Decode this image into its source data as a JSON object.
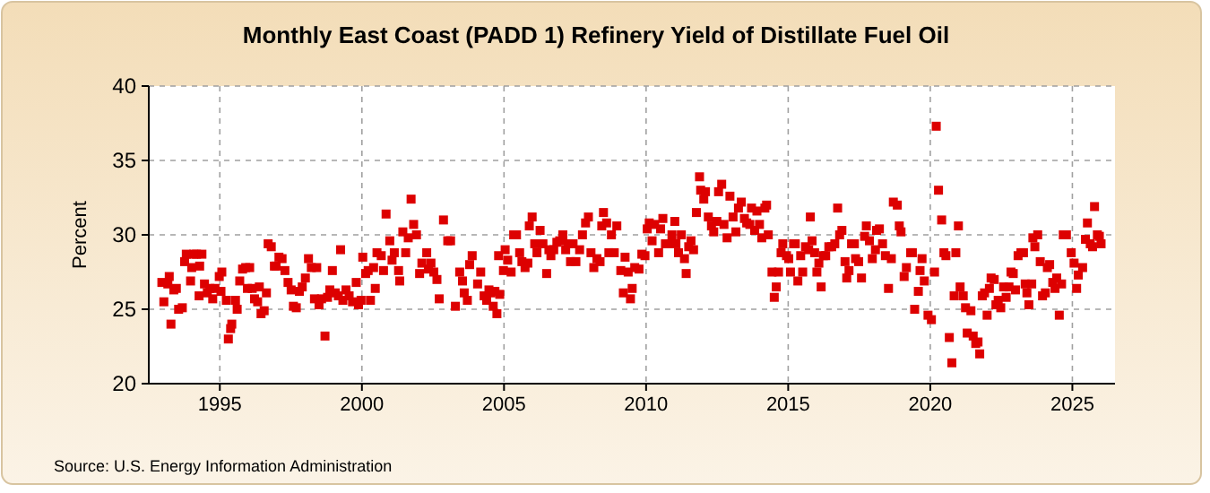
{
  "chart_data": {
    "type": "scatter",
    "title": "Monthly East Coast (PADD 1) Refinery Yield of Distillate Fuel Oil",
    "ylabel": "Percent",
    "annotations": [
      "Source: U.S. Energy Information Administration"
    ],
    "xlim": [
      1992.5,
      2026.5
    ],
    "xticks": [
      1995,
      2000,
      2005,
      2010,
      2015,
      2020,
      2025
    ],
    "ylim": [
      20,
      40
    ],
    "yticks": [
      20,
      25,
      30,
      35,
      40
    ],
    "grid": true,
    "marker": "square",
    "series": [
      {
        "color": "#dd0000",
        "x": [
          1992.96,
          1993.03,
          1993.17,
          1993.22,
          1993.28,
          1993.38,
          1993.47,
          1993.55,
          1993.68,
          1993.76,
          1993.82,
          1993.97,
          1994.01,
          1994.08,
          1994.18,
          1994.27,
          1994.29,
          1994.37,
          1994.46,
          1994.56,
          1994.65,
          1994.75,
          1994.83,
          1994.98,
          1995.04,
          1995.07,
          1995.23,
          1995.3,
          1995.38,
          1995.42,
          1995.55,
          1995.61,
          1995.7,
          1995.8,
          1995.91,
          1995.97,
          1996.05,
          1996.14,
          1996.22,
          1996.33,
          1996.39,
          1996.45,
          1996.56,
          1996.64,
          1996.7,
          1996.81,
          1996.92,
          1996.98,
          1997.08,
          1997.19,
          1997.29,
          1997.4,
          1997.51,
          1997.59,
          1997.69,
          1997.8,
          1997.9,
          1998.01,
          1998.12,
          1998.22,
          1998.33,
          1998.41,
          1998.49,
          1998.58,
          1998.7,
          1998.79,
          1998.87,
          1998.96,
          1999.06,
          1999.17,
          1999.25,
          1999.33,
          1999.44,
          1999.55,
          1999.67,
          1999.8,
          1999.88,
          1999.97,
          2000.03,
          2000.13,
          2000.22,
          2000.3,
          2000.41,
          2000.47,
          2000.53,
          2000.68,
          2000.76,
          2000.85,
          2000.98,
          2001.06,
          2001.14,
          2001.29,
          2001.33,
          2001.44,
          2001.54,
          2001.63,
          2001.73,
          2001.82,
          2001.92,
          2002.03,
          2002.11,
          2002.28,
          2002.34,
          2002.43,
          2002.53,
          2002.64,
          2002.72,
          2002.87,
          2003.02,
          2003.12,
          2003.29,
          2003.44,
          2003.54,
          2003.6,
          2003.71,
          2003.79,
          2003.88,
          2004.07,
          2004.18,
          2004.3,
          2004.39,
          2004.47,
          2004.54,
          2004.62,
          2004.68,
          2004.75,
          2004.81,
          2004.85,
          2004.98,
          2005.04,
          2005.13,
          2005.25,
          2005.34,
          2005.44,
          2005.55,
          2005.63,
          2005.74,
          2005.84,
          2005.89,
          2005.99,
          2006.08,
          2006.16,
          2006.27,
          2006.37,
          2006.5,
          2006.58,
          2006.65,
          2006.75,
          2006.86,
          2006.96,
          2007.07,
          2007.17,
          2007.26,
          2007.34,
          2007.43,
          2007.53,
          2007.66,
          2007.76,
          2007.87,
          2007.97,
          2008.06,
          2008.16,
          2008.27,
          2008.38,
          2008.44,
          2008.5,
          2008.61,
          2008.69,
          2008.78,
          2008.88,
          2008.97,
          2009.11,
          2009.2,
          2009.26,
          2009.37,
          2009.45,
          2009.51,
          2009.6,
          2009.75,
          2009.85,
          2009.96,
          2010.04,
          2010.11,
          2010.21,
          2010.3,
          2010.44,
          2010.51,
          2010.59,
          2010.68,
          2010.8,
          2010.91,
          2011.01,
          2011.05,
          2011.14,
          2011.24,
          2011.35,
          2011.41,
          2011.5,
          2011.58,
          2011.67,
          2011.77,
          2011.88,
          2011.92,
          2012.03,
          2012.09,
          2012.19,
          2012.3,
          2012.38,
          2012.49,
          2012.55,
          2012.66,
          2012.74,
          2012.85,
          2012.95,
          2013.06,
          2013.16,
          2013.25,
          2013.35,
          2013.46,
          2013.54,
          2013.65,
          2013.71,
          2013.82,
          2013.9,
          2013.99,
          2014.07,
          2014.18,
          2014.24,
          2014.3,
          2014.43,
          2014.51,
          2014.58,
          2014.66,
          2014.75,
          2014.81,
          2014.94,
          2015.02,
          2015.08,
          2015.19,
          2015.25,
          2015.34,
          2015.44,
          2015.51,
          2015.61,
          2015.72,
          2015.78,
          2015.84,
          2015.93,
          2016.01,
          2016.08,
          2016.16,
          2016.24,
          2016.32,
          2016.43,
          2016.53,
          2016.64,
          2016.74,
          2016.81,
          2016.89,
          2017.0,
          2017.06,
          2017.14,
          2017.23,
          2017.33,
          2017.37,
          2017.48,
          2017.58,
          2017.69,
          2017.75,
          2017.86,
          2017.96,
          2018.07,
          2018.11,
          2018.21,
          2018.32,
          2018.42,
          2018.53,
          2018.63,
          2018.7,
          2018.84,
          2018.91,
          2018.97,
          2019.08,
          2019.16,
          2019.31,
          2019.37,
          2019.45,
          2019.58,
          2019.64,
          2019.71,
          2019.79,
          2019.92,
          2020.04,
          2020.15,
          2020.21,
          2020.29,
          2020.4,
          2020.48,
          2020.55,
          2020.67,
          2020.76,
          2020.84,
          2020.9,
          2020.99,
          2021.05,
          2021.16,
          2021.24,
          2021.3,
          2021.43,
          2021.51,
          2021.6,
          2021.68,
          2021.74,
          2021.83,
          2021.91,
          2022.0,
          2022.08,
          2022.14,
          2022.25,
          2022.31,
          2022.39,
          2022.48,
          2022.58,
          2022.67,
          2022.77,
          2022.84,
          2022.92,
          2023.0,
          2023.09,
          2023.19,
          2023.28,
          2023.34,
          2023.4,
          2023.47,
          2023.57,
          2023.61,
          2023.68,
          2023.78,
          2023.87,
          2023.95,
          2024.05,
          2024.12,
          2024.2,
          2024.31,
          2024.39,
          2024.45,
          2024.54,
          2024.62,
          2024.68,
          2024.79,
          2024.96,
          2025.06,
          2025.15,
          2025.21,
          2025.36,
          2025.46,
          2025.53,
          2025.63,
          2025.71,
          2025.78,
          2025.88,
          2025.95,
          2026.01
        ],
        "values": [
          26.8,
          25.5,
          26.7,
          27.2,
          24.0,
          26.3,
          26.4,
          25.0,
          25.1,
          28.2,
          28.7,
          26.9,
          27.8,
          28.7,
          28.7,
          25.9,
          27.9,
          28.7,
          26.7,
          26.1,
          26.4,
          25.7,
          26.4,
          27.2,
          26.2,
          27.5,
          25.6,
          23.0,
          23.7,
          24.0,
          25.6,
          25.0,
          26.9,
          27.7,
          27.8,
          26.4,
          27.8,
          26.4,
          25.7,
          25.5,
          26.5,
          24.7,
          24.9,
          26.1,
          29.4,
          29.2,
          27.9,
          27.9,
          28.5,
          28.4,
          27.6,
          26.8,
          26.3,
          25.2,
          25.1,
          26.2,
          26.5,
          27.1,
          28.4,
          27.8,
          25.7,
          27.8,
          25.3,
          25.7,
          23.2,
          25.8,
          26.3,
          27.6,
          26.1,
          25.9,
          29.0,
          25.6,
          26.3,
          25.9,
          25.5,
          26.8,
          25.3,
          25.6,
          28.5,
          27.4,
          27.6,
          25.6,
          27.8,
          26.4,
          28.8,
          28.6,
          27.6,
          31.4,
          29.6,
          28.3,
          28.8,
          27.6,
          26.9,
          30.2,
          28.8,
          29.8,
          32.4,
          30.7,
          30.0,
          27.4,
          28.1,
          28.8,
          27.7,
          28.1,
          27.5,
          27.0,
          25.7,
          31.0,
          29.6,
          29.6,
          25.2,
          27.5,
          26.9,
          26.1,
          25.6,
          28.0,
          28.6,
          26.7,
          27.5,
          25.9,
          25.6,
          26.3,
          26.1,
          25.2,
          26.2,
          24.7,
          28.6,
          26.0,
          27.6,
          29.0,
          28.3,
          27.5,
          30.0,
          30.0,
          28.8,
          28.2,
          27.8,
          28.1,
          30.6,
          31.2,
          29.4,
          28.8,
          30.3,
          29.4,
          27.4,
          29.0,
          28.6,
          29.0,
          29.5,
          29.6,
          30.0,
          29.0,
          29.4,
          28.2,
          29.4,
          28.2,
          29.0,
          30.0,
          30.8,
          31.2,
          28.8,
          27.8,
          28.4,
          28.2,
          30.6,
          31.5,
          30.8,
          28.8,
          30.0,
          28.8,
          30.6,
          27.6,
          26.1,
          28.5,
          27.5,
          25.7,
          26.4,
          27.8,
          27.7,
          28.7,
          28.6,
          30.4,
          30.8,
          29.6,
          30.7,
          28.8,
          30.4,
          31.1,
          29.4,
          29.4,
          30.0,
          30.9,
          29.4,
          28.8,
          30.0,
          28.4,
          27.4,
          29.2,
          29.6,
          29.0,
          31.5,
          33.9,
          33.0,
          32.4,
          32.9,
          31.2,
          30.6,
          30.2,
          30.9,
          32.9,
          33.4,
          30.7,
          29.8,
          32.6,
          31.2,
          30.2,
          31.8,
          32.2,
          31.1,
          30.8,
          30.7,
          31.8,
          30.3,
          31.6,
          30.7,
          29.8,
          31.8,
          32.0,
          30.0,
          27.5,
          25.8,
          26.5,
          27.5,
          28.8,
          29.4,
          28.6,
          28.4,
          27.5,
          29.4,
          29.4,
          26.9,
          28.6,
          27.5,
          29.2,
          29.0,
          31.2,
          29.6,
          28.8,
          27.5,
          28.1,
          26.5,
          28.6,
          28.6,
          29.2,
          29.2,
          29.4,
          31.8,
          30.0,
          30.3,
          28.2,
          27.1,
          27.6,
          29.4,
          29.4,
          28.4,
          28.2,
          27.1,
          29.9,
          30.6,
          29.6,
          28.4,
          29.0,
          30.3,
          30.4,
          29.4,
          28.6,
          26.4,
          28.4,
          32.2,
          32.0,
          30.6,
          30.2,
          27.2,
          27.8,
          28.8,
          28.8,
          25.0,
          26.2,
          27.6,
          28.4,
          26.9,
          24.6,
          24.3,
          27.5,
          37.3,
          33.0,
          31.0,
          28.8,
          28.6,
          23.1,
          21.4,
          25.9,
          28.8,
          30.6,
          26.5,
          25.9,
          25.1,
          23.4,
          24.9,
          23.2,
          22.7,
          22.8,
          22.0,
          25.9,
          26.1,
          24.6,
          26.4,
          27.1,
          27.0,
          25.3,
          25.6,
          25.1,
          26.5,
          25.8,
          26.5,
          27.5,
          27.4,
          26.3,
          28.6,
          28.8,
          28.8,
          26.7,
          26.1,
          25.3,
          26.7,
          29.8,
          29.2,
          30.0,
          28.2,
          25.9,
          26.1,
          27.8,
          28.0,
          26.8,
          26.4,
          27.1,
          24.6,
          26.7,
          30.0,
          30.0,
          28.8,
          28.1,
          26.4,
          27.3,
          27.8,
          29.7,
          30.8,
          29.4,
          29.2,
          31.9,
          30.0,
          29.9,
          29.4
        ]
      }
    ]
  }
}
